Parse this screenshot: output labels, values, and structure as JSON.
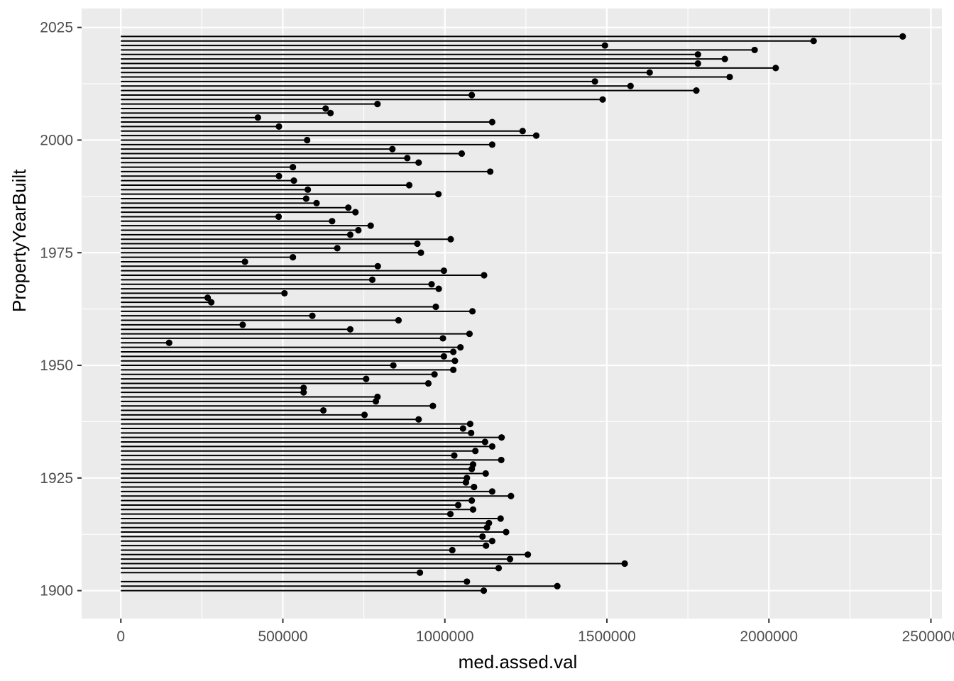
{
  "chart": {
    "x_title": "med.assed.val",
    "y_title": "PropertyYearBuilt"
  },
  "chart_data": {
    "type": "bar",
    "style": "horizontal-lollipop (segment from 0 with point at value)",
    "title": "",
    "xlabel": "med.assed.val",
    "ylabel": "PropertyYearBuilt",
    "x_ticks": [
      0,
      500000,
      1000000,
      1500000,
      2000000,
      2500000
    ],
    "y_ticks": [
      1900,
      1925,
      1950,
      1975,
      2000,
      2025
    ],
    "xlim": [
      -121000,
      2534000
    ],
    "ylim": [
      1893.8,
      2029.2
    ],
    "grid": "on",
    "legend": "none",
    "panel_bg": "#EBEBEB",
    "grid_color": "#FFFFFF",
    "tick_color": "#333333",
    "axis_text_color": "#4D4D4D",
    "line_color": "#000000",
    "point_color": "#000000",
    "years_absent": [
      1903
    ],
    "years": [
      1900,
      1901,
      1902,
      1904,
      1905,
      1906,
      1907,
      1908,
      1909,
      1910,
      1911,
      1912,
      1913,
      1914,
      1915,
      1916,
      1917,
      1918,
      1919,
      1920,
      1921,
      1922,
      1923,
      1924,
      1925,
      1926,
      1927,
      1928,
      1929,
      1930,
      1931,
      1932,
      1933,
      1934,
      1935,
      1936,
      1937,
      1938,
      1939,
      1940,
      1941,
      1942,
      1943,
      1944,
      1945,
      1946,
      1947,
      1948,
      1949,
      1950,
      1951,
      1952,
      1953,
      1954,
      1955,
      1956,
      1957,
      1958,
      1959,
      1960,
      1961,
      1962,
      1963,
      1964,
      1965,
      1966,
      1967,
      1968,
      1969,
      1970,
      1971,
      1972,
      1973,
      1974,
      1975,
      1976,
      1977,
      1978,
      1979,
      1980,
      1981,
      1982,
      1983,
      1984,
      1985,
      1986,
      1987,
      1988,
      1989,
      1990,
      1991,
      1992,
      1993,
      1994,
      1995,
      1996,
      1997,
      1998,
      1999,
      2000,
      2001,
      2002,
      2003,
      2004,
      2005,
      2006,
      2007,
      2008,
      2009,
      2010,
      2011,
      2012,
      2013,
      2014,
      2015,
      2016,
      2017,
      2018,
      2019,
      2020,
      2021,
      2022,
      2023
    ],
    "values": [
      1120000,
      1347000,
      1068000,
      923000,
      1166000,
      1555000,
      1201000,
      1256000,
      1023000,
      1127000,
      1146000,
      1116000,
      1189000,
      1130000,
      1136000,
      1172000,
      1017000,
      1087000,
      1041000,
      1083000,
      1204000,
      1146000,
      1090000,
      1065000,
      1068000,
      1126000,
      1083000,
      1087000,
      1174000,
      1029000,
      1094000,
      1146000,
      1124000,
      1175000,
      1081000,
      1056000,
      1078000,
      919000,
      752000,
      625000,
      963000,
      787000,
      792000,
      564000,
      564000,
      949000,
      757000,
      968000,
      1026000,
      841000,
      1031000,
      997000,
      1026000,
      1048000,
      149000,
      994000,
      1076000,
      708000,
      376000,
      857000,
      591000,
      1085000,
      972000,
      279000,
      268000,
      505000,
      981000,
      959000,
      776000,
      1121000,
      997000,
      793000,
      383000,
      531000,
      926000,
      668000,
      915000,
      1018000,
      708000,
      733000,
      771000,
      652000,
      487000,
      724000,
      702000,
      604000,
      572000,
      980000,
      577000,
      890000,
      534000,
      488000,
      1140000,
      531000,
      919000,
      884000,
      1052000,
      838000,
      1146000,
      575000,
      1282000,
      1240000,
      488000,
      1146000,
      423000,
      647000,
      632000,
      792000,
      1487000,
      1083000,
      1776000,
      1573000,
      1463000,
      1879000,
      1632000,
      2021000,
      1781000,
      1864000,
      1781000,
      1956000,
      1494000,
      2138000,
      2413000
    ]
  }
}
